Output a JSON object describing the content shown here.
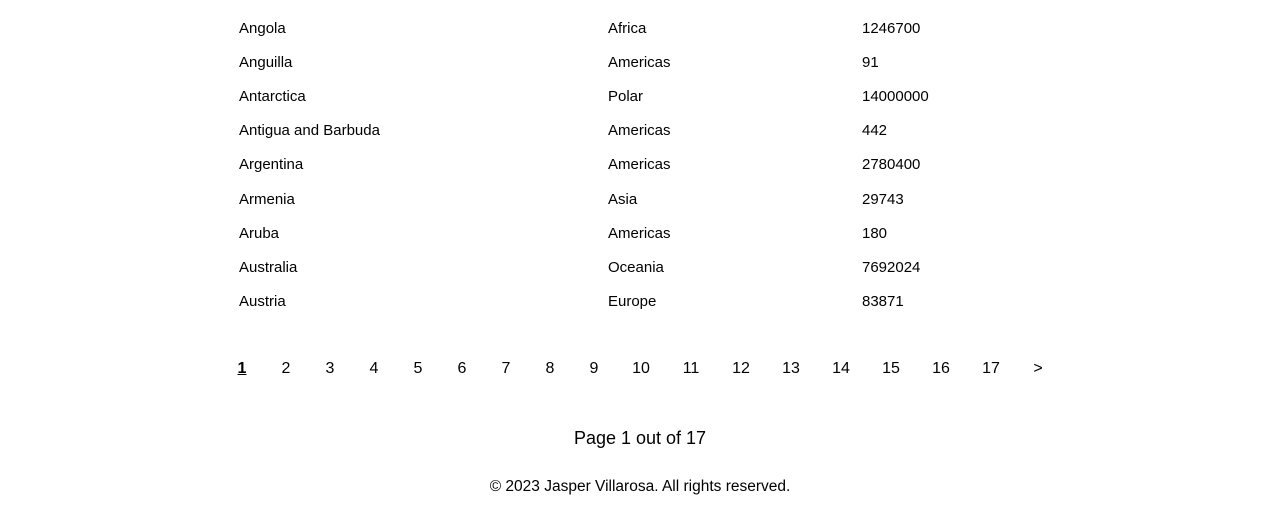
{
  "table": {
    "rows": [
      {
        "country": "Angola",
        "region": "Africa",
        "area": "1246700"
      },
      {
        "country": "Anguilla",
        "region": "Americas",
        "area": "91"
      },
      {
        "country": "Antarctica",
        "region": "Polar",
        "area": "14000000"
      },
      {
        "country": "Antigua and Barbuda",
        "region": "Americas",
        "area": "442"
      },
      {
        "country": "Argentina",
        "region": "Americas",
        "area": "2780400"
      },
      {
        "country": "Armenia",
        "region": "Asia",
        "area": "29743"
      },
      {
        "country": "Aruba",
        "region": "Americas",
        "area": "180"
      },
      {
        "country": "Australia",
        "region": "Oceania",
        "area": "7692024"
      },
      {
        "country": "Austria",
        "region": "Europe",
        "area": "83871"
      }
    ]
  },
  "pagination": {
    "current": 1,
    "pages": [
      "1",
      "2",
      "3",
      "4",
      "5",
      "6",
      "7",
      "8",
      "9",
      "10",
      "11",
      "12",
      "13",
      "14",
      "15",
      "16",
      "17"
    ],
    "next_label": ">"
  },
  "page_info": "Page 1 out of 17",
  "footer": "© 2023 Jasper Villarosa. All rights reserved."
}
